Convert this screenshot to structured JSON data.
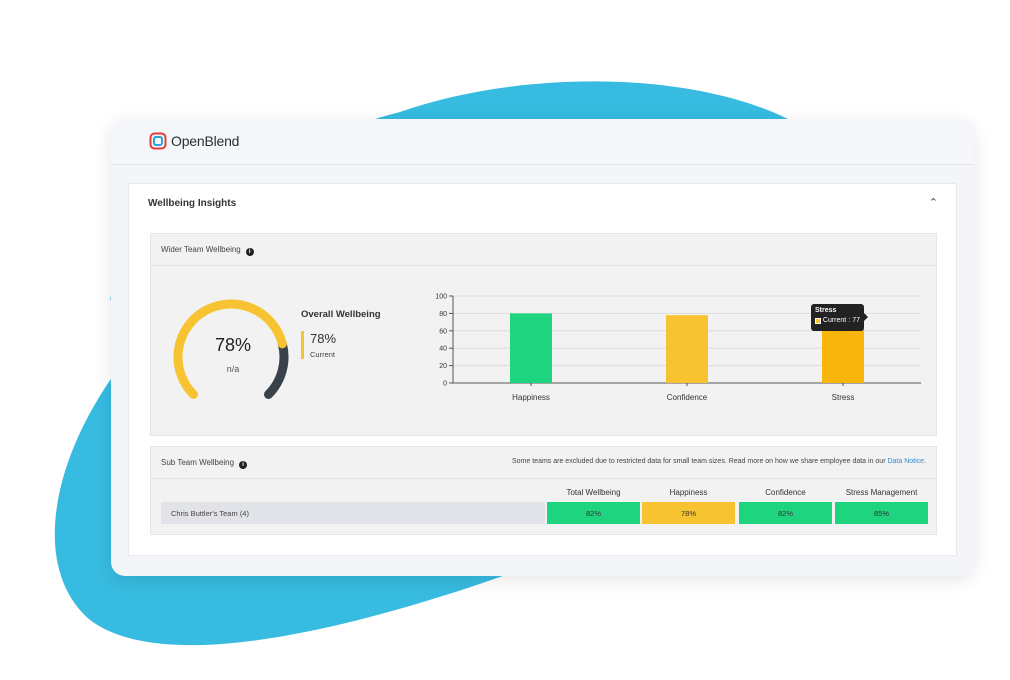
{
  "app": {
    "brand": "OpenBlend"
  },
  "colors": {
    "accent_blue": "#37bbe0",
    "green": "#1fd47e",
    "yellow": "#f7c330",
    "gauge_dark": "#39414a",
    "link": "#2f8ecf"
  },
  "card": {
    "title": "Wellbeing Insights",
    "collapse_icon": "chevron-up-icon"
  },
  "wider_team": {
    "title": "Wider Team Wellbeing",
    "info_icon": "info-icon",
    "gauge": {
      "value_text": "78%",
      "sub_text": "n/a",
      "fraction": 0.78
    },
    "overall": {
      "title": "Overall Wellbeing",
      "value": "78%",
      "label": "Current"
    }
  },
  "chart_data": {
    "type": "bar",
    "categories": [
      "Happiness",
      "Confidence",
      "Stress"
    ],
    "values": [
      80,
      78,
      77
    ],
    "colors": [
      "#1fd47e",
      "#f7c330",
      "#f7b50e"
    ],
    "ylim": [
      0,
      100
    ],
    "yticks": [
      "0",
      "20",
      "40",
      "60",
      "80",
      "100"
    ],
    "grid": true,
    "tooltip": {
      "title": "Stress",
      "series": "Current",
      "value": "77"
    }
  },
  "sub_team": {
    "title": "Sub Team Wellbeing",
    "info_icon": "info-icon",
    "notice_text": "Some teams are excluded due to restricted data for small team sizes. Read more on how we share employee data in our ",
    "notice_link": "Data Notice",
    "notice_end": ".",
    "columns": [
      "Total Wellbeing",
      "Happiness",
      "Confidence",
      "Stress Management"
    ],
    "rows": [
      {
        "team": "Chris Buttler's Team (4)",
        "values": [
          "82%",
          "78%",
          "82%",
          "85%"
        ],
        "colors": [
          "#1fd47e",
          "#f7c330",
          "#1fd47e",
          "#1fd47e"
        ]
      }
    ]
  }
}
